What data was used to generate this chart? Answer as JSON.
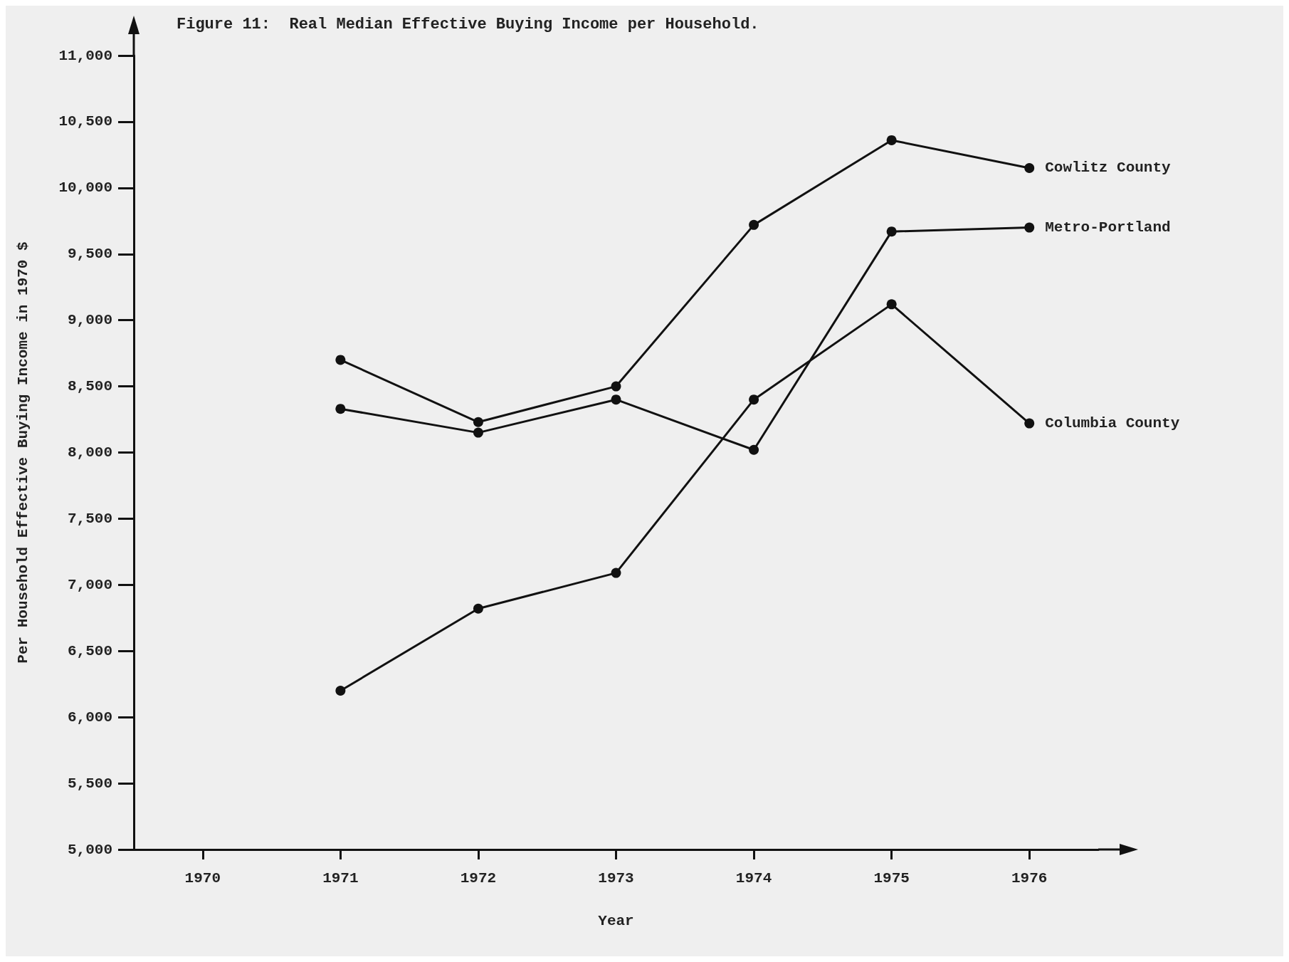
{
  "chart_data": {
    "type": "line",
    "title": "Figure 11:  Real Median Effective Buying Income per Household.",
    "xlabel": "Year",
    "ylabel": "Per Household Effective Buying Income in 1970 $",
    "categories": [
      "1970",
      "1971",
      "1972",
      "1973",
      "1974",
      "1975",
      "1976"
    ],
    "series": [
      {
        "name": "Cowlitz County",
        "color": "#111111",
        "values": [
          null,
          8700,
          8230,
          8500,
          9720,
          10360,
          10150
        ]
      },
      {
        "name": "Metro-Portland",
        "color": "#111111",
        "values": [
          null,
          8330,
          8150,
          8400,
          8020,
          9670,
          9700
        ]
      },
      {
        "name": "Columbia County",
        "color": "#111111",
        "values": [
          null,
          6200,
          6820,
          7090,
          8400,
          9120,
          8220
        ]
      }
    ],
    "ylim": [
      5000,
      11000
    ],
    "yticks": [
      {
        "value": 5000,
        "label": "5,000"
      },
      {
        "value": 5500,
        "label": "5,500"
      },
      {
        "value": 6000,
        "label": "6,000"
      },
      {
        "value": 6500,
        "label": "6,500"
      },
      {
        "value": 7000,
        "label": "7,000"
      },
      {
        "value": 7500,
        "label": "7,500"
      },
      {
        "value": 8000,
        "label": "8,000"
      },
      {
        "value": 8500,
        "label": "8,500"
      },
      {
        "value": 9000,
        "label": "9,000"
      },
      {
        "value": 9500,
        "label": "9,500"
      },
      {
        "value": 10000,
        "label": "10,000"
      },
      {
        "value": 10500,
        "label": "10,500"
      },
      {
        "value": 11000,
        "label": "11,000"
      }
    ],
    "grid": false,
    "legend": false,
    "marker": "circle",
    "line_style": "solid"
  }
}
